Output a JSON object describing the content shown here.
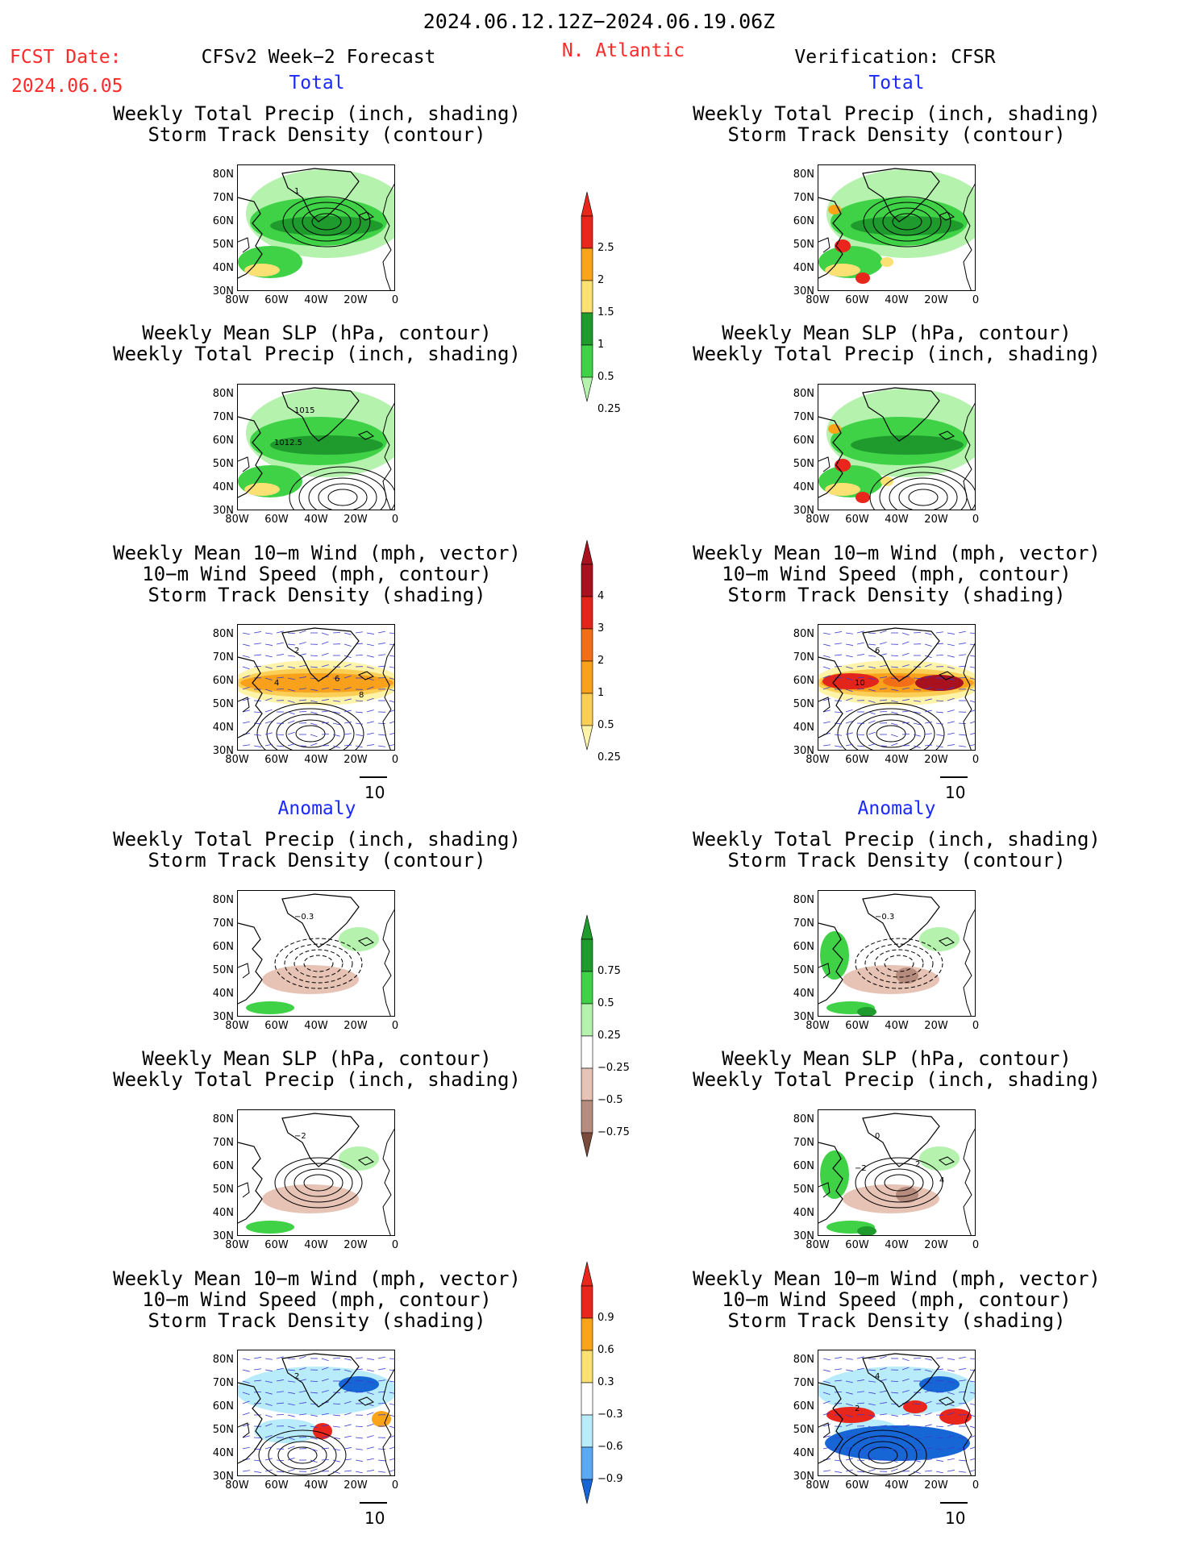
{
  "header": {
    "date_range": "2024.06.12.12Z−2024.06.19.06Z",
    "fcst_label": "FCST Date:",
    "fcst_date": "2024.06.05",
    "forecast_title": "CFSv2 Week−2 Forecast",
    "region": "N. Atlantic",
    "verification_title": "Verification: CFSR"
  },
  "sections": {
    "total": "Total",
    "anomaly": "Anomaly"
  },
  "titles": {
    "precip_track": [
      "Weekly Total Precip (inch, shading)",
      "Storm Track Density (contour)"
    ],
    "slp_precip": [
      "Weekly Mean SLP (hPa, contour)",
      "Weekly Total Precip (inch, shading)"
    ],
    "wind": [
      "Weekly Mean 10−m Wind (mph, vector)",
      "10−m Wind Speed (mph, contour)",
      "Storm Track Density (shading)"
    ]
  },
  "axes": {
    "lat": [
      "80N",
      "70N",
      "60N",
      "50N",
      "40N",
      "30N"
    ],
    "lon": [
      "80W",
      "60W",
      "40W",
      "20W",
      "0"
    ]
  },
  "vector_ref": "10",
  "colorbars": {
    "precip": {
      "labels": [
        "2.5",
        "2",
        "1.5",
        "1",
        "0.5",
        "0.25"
      ],
      "colors": [
        "#e8261c",
        "#f9a419",
        "#fbe173",
        "#1f9a2d",
        "#3fd247",
        "#b5f2ae"
      ]
    },
    "storm": {
      "labels": [
        "4",
        "3",
        "2",
        "1",
        "0.5",
        "0.25"
      ],
      "colors": [
        "#a8111e",
        "#e2241b",
        "#f26f17",
        "#f9a11a",
        "#fbce55",
        "#fdf3a9"
      ]
    },
    "precip_anom": {
      "labels": [
        "0.75",
        "0.5",
        "0.25",
        "−0.25",
        "−0.5",
        "−0.75"
      ],
      "colors": [
        "#1f9a2d",
        "#3fd247",
        "#b5f2ae",
        "#ffffff",
        "#e6c3b5",
        "#b68c7e",
        "#7a4a3c"
      ]
    },
    "storm_anom": {
      "labels": [
        "0.9",
        "0.6",
        "0.3",
        "−0.3",
        "−0.6",
        "−0.9"
      ],
      "colors": [
        "#e8261c",
        "#f9a419",
        "#fbe173",
        "#ffffff",
        "#b8ecfb",
        "#5aa9f5",
        "#1766d6"
      ]
    }
  },
  "contour_labels": {
    "fc_precip_total": [
      "1"
    ],
    "fc_slp_total": [
      "1015",
      "1012.5"
    ],
    "fc_wind_total": [
      "2",
      "4",
      "6",
      "8"
    ],
    "ver_wind_total": [
      "6",
      "10"
    ],
    "fc_precip_anom": [
      "−0.3"
    ],
    "ver_precip_anom": [
      "−0.3"
    ],
    "fc_slp_anom": [
      "−2"
    ],
    "ver_slp_anom": [
      "0",
      "−2",
      "2",
      "4"
    ],
    "fc_wind_anom": [
      "2"
    ],
    "ver_wind_anom": [
      "4",
      "2"
    ]
  }
}
